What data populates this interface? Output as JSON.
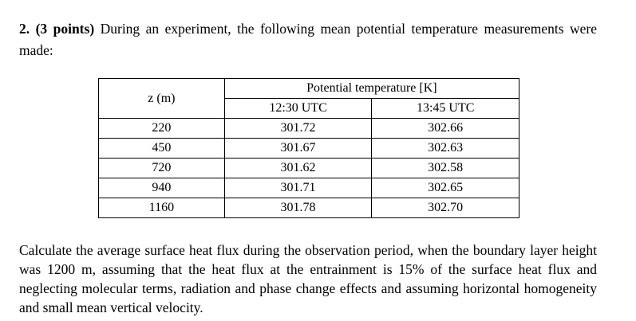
{
  "question": {
    "number": "2.",
    "points": "(3 points)",
    "intro": "During an experiment, the following mean potential temperature measurements were made:"
  },
  "table": {
    "z_header": "z (m)",
    "group_header": "Potential temperature [K]",
    "time_headers": [
      "12:30 UTC",
      "13:45 UTC"
    ],
    "rows": [
      {
        "z": "220",
        "t1": "301.72",
        "t2": "302.66"
      },
      {
        "z": "450",
        "t1": "301.67",
        "t2": "302.63"
      },
      {
        "z": "720",
        "t1": "301.62",
        "t2": "302.58"
      },
      {
        "z": "940",
        "t1": "301.71",
        "t2": "302.65"
      },
      {
        "z": "1160",
        "t1": "301.78",
        "t2": "302.70"
      }
    ]
  },
  "closing": "Calculate the average surface heat flux during the observation period, when the boundary layer height was 1200 m, assuming that the heat flux at the entrainment is 15% of the surface heat flux and neglecting molecular terms, radiation and phase change effects and assuming horizontal homogeneity and small mean vertical velocity."
}
